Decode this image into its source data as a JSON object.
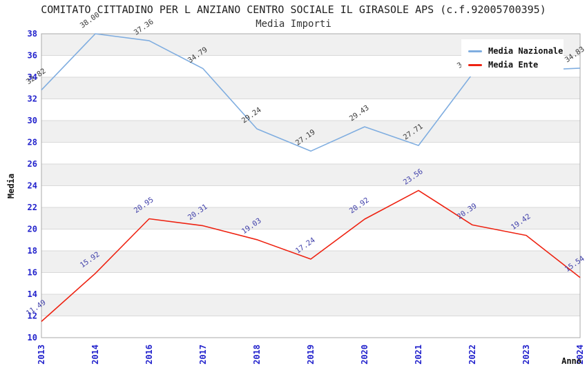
{
  "title": "COMITATO CITTADINO PER L ANZIANO CENTRO SOCIALE IL GIRASOLE APS (c.f.92005700395)",
  "subtitle": "Media Importi",
  "chart_data": {
    "type": "line",
    "x": [
      "2013",
      "2014",
      "2016",
      "2017",
      "2018",
      "2019",
      "2020",
      "2021",
      "2022",
      "2023",
      "2024"
    ],
    "series": [
      {
        "id": "media-nazionale",
        "name": "Media Nazionale",
        "color": "#7fade0",
        "label_color": "#3a3a3a",
        "values": [
          32.82,
          38.0,
          37.36,
          34.79,
          29.24,
          27.19,
          29.43,
          27.71,
          34.3,
          34.6,
          34.83
        ]
      },
      {
        "id": "media-ente",
        "name": "Media Ente",
        "color": "#ee2211",
        "label_color": "#4040aa",
        "values": [
          11.49,
          15.92,
          20.95,
          20.31,
          19.03,
          17.24,
          20.92,
          23.56,
          20.39,
          19.42,
          15.54
        ]
      }
    ],
    "xlabel": "Anno",
    "ylabel": "Media",
    "ylim": [
      10,
      38
    ],
    "ytick_step": 2,
    "grid": true,
    "legend_position": "top-right",
    "colors": {
      "band": "#f0f0f0",
      "grid": "#d9d9d9",
      "border": "#aaaaaa",
      "tick_label": "#2222cc"
    }
  }
}
